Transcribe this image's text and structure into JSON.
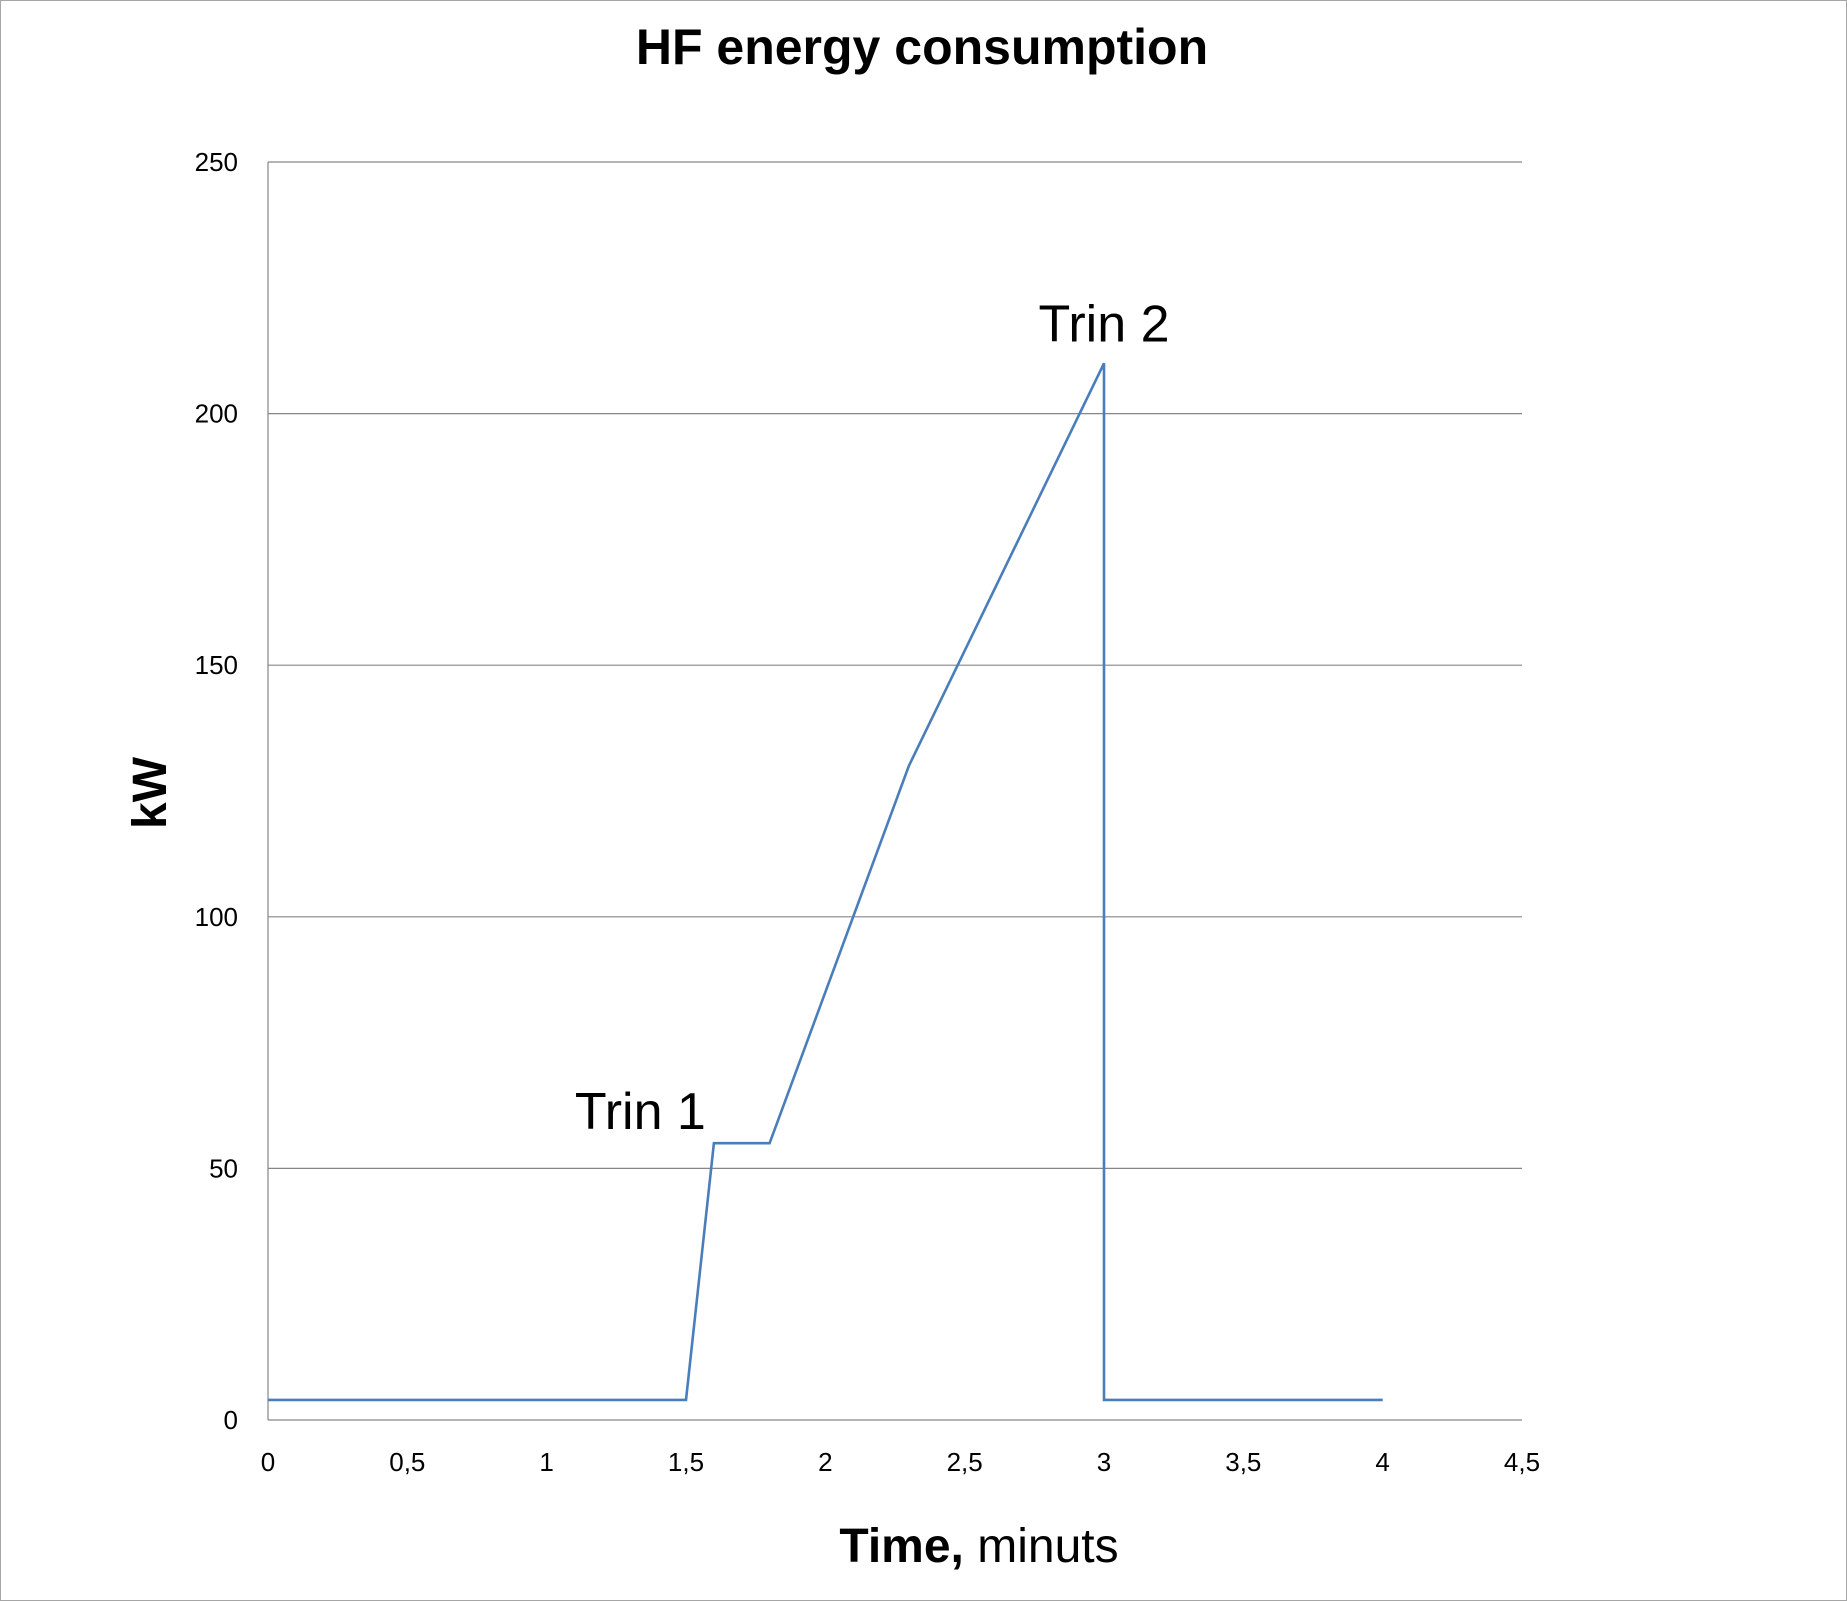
{
  "chart_data": {
    "type": "line",
    "title": "HF energy consumption",
    "xlabel": {
      "bold": "Time,",
      "normal": " minuts"
    },
    "ylabel": "kW",
    "xlim": [
      0,
      4.5
    ],
    "ylim": [
      0,
      250
    ],
    "x_ticks": [
      {
        "value": 0,
        "label": "0"
      },
      {
        "value": 0.5,
        "label": "0,5"
      },
      {
        "value": 1,
        "label": "1"
      },
      {
        "value": 1.5,
        "label": "1,5"
      },
      {
        "value": 2,
        "label": "2"
      },
      {
        "value": 2.5,
        "label": "2,5"
      },
      {
        "value": 3,
        "label": "3"
      },
      {
        "value": 3.5,
        "label": "3,5"
      },
      {
        "value": 4,
        "label": "4"
      },
      {
        "value": 4.5,
        "label": "4,5"
      }
    ],
    "y_ticks": [
      {
        "value": 0,
        "label": "0"
      },
      {
        "value": 50,
        "label": "50"
      },
      {
        "value": 100,
        "label": "100"
      },
      {
        "value": 150,
        "label": "150"
      },
      {
        "value": 200,
        "label": "200"
      },
      {
        "value": 250,
        "label": "250"
      }
    ],
    "grid": "horizontal",
    "legend": "none",
    "series": [
      {
        "color": "#4a7ebb",
        "x": [
          0,
          1.5,
          1.6,
          1.8,
          2.3,
          3.0,
          3.0,
          4.0
        ],
        "y": [
          4,
          4,
          55,
          55,
          130,
          210,
          4,
          4
        ]
      }
    ],
    "annotations": [
      {
        "text": "Trin 1",
        "x": 1.6,
        "y": 55
      },
      {
        "text": "Trin 2",
        "x": 3.0,
        "y": 210
      }
    ]
  }
}
